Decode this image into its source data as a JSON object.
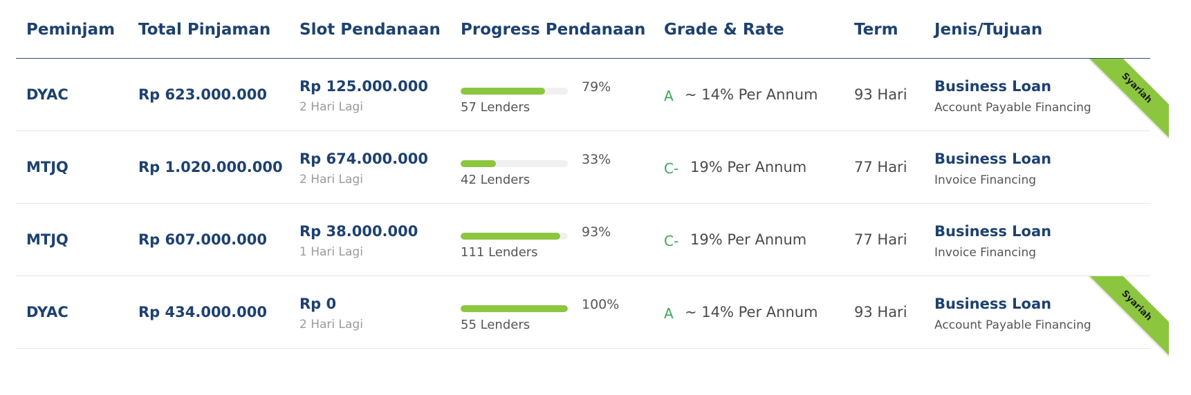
{
  "headers": {
    "borrower": "Peminjam",
    "total": "Total Pinjaman",
    "slot": "Slot Pendanaan",
    "progress": "Progress Pendanaan",
    "grade_rate": "Grade & Rate",
    "term": "Term",
    "purpose": "Jenis/Tujuan"
  },
  "colors": {
    "accent_green": "#8cc63f",
    "heading_blue": "#1d4170",
    "grade_green": "#3aa655"
  },
  "rows": [
    {
      "borrower": "DYAC",
      "total": "Rp 623.000.000",
      "slot_amount": "Rp 125.000.000",
      "slot_time": "2 Hari Lagi",
      "progress_percent": 79,
      "progress_label": "79%",
      "lenders": "57 Lenders",
      "grade": "A",
      "rate": "~ 14% Per Annum",
      "term": "93 Hari",
      "purpose_title": "Business Loan",
      "purpose_sub": "Account Payable Financing",
      "ribbon": "Syariah"
    },
    {
      "borrower": "MTJQ",
      "total": "Rp 1.020.000.000",
      "slot_amount": "Rp 674.000.000",
      "slot_time": "2 Hari Lagi",
      "progress_percent": 33,
      "progress_label": "33%",
      "lenders": "42 Lenders",
      "grade": "C-",
      "rate": "19% Per Annum",
      "term": "77 Hari",
      "purpose_title": "Business Loan",
      "purpose_sub": "Invoice Financing",
      "ribbon": ""
    },
    {
      "borrower": "MTJQ",
      "total": "Rp 607.000.000",
      "slot_amount": "Rp 38.000.000",
      "slot_time": "1 Hari Lagi",
      "progress_percent": 93,
      "progress_label": "93%",
      "lenders": "111 Lenders",
      "grade": "C-",
      "rate": "19% Per Annum",
      "term": "77 Hari",
      "purpose_title": "Business Loan",
      "purpose_sub": "Invoice Financing",
      "ribbon": ""
    },
    {
      "borrower": "DYAC",
      "total": "Rp 434.000.000",
      "slot_amount": "Rp 0",
      "slot_time": "2 Hari Lagi",
      "progress_percent": 100,
      "progress_label": "100%",
      "lenders": "55 Lenders",
      "grade": "A",
      "rate": "~ 14% Per Annum",
      "term": "93 Hari",
      "purpose_title": "Business Loan",
      "purpose_sub": "Account Payable Financing",
      "ribbon": "Syariah"
    }
  ]
}
